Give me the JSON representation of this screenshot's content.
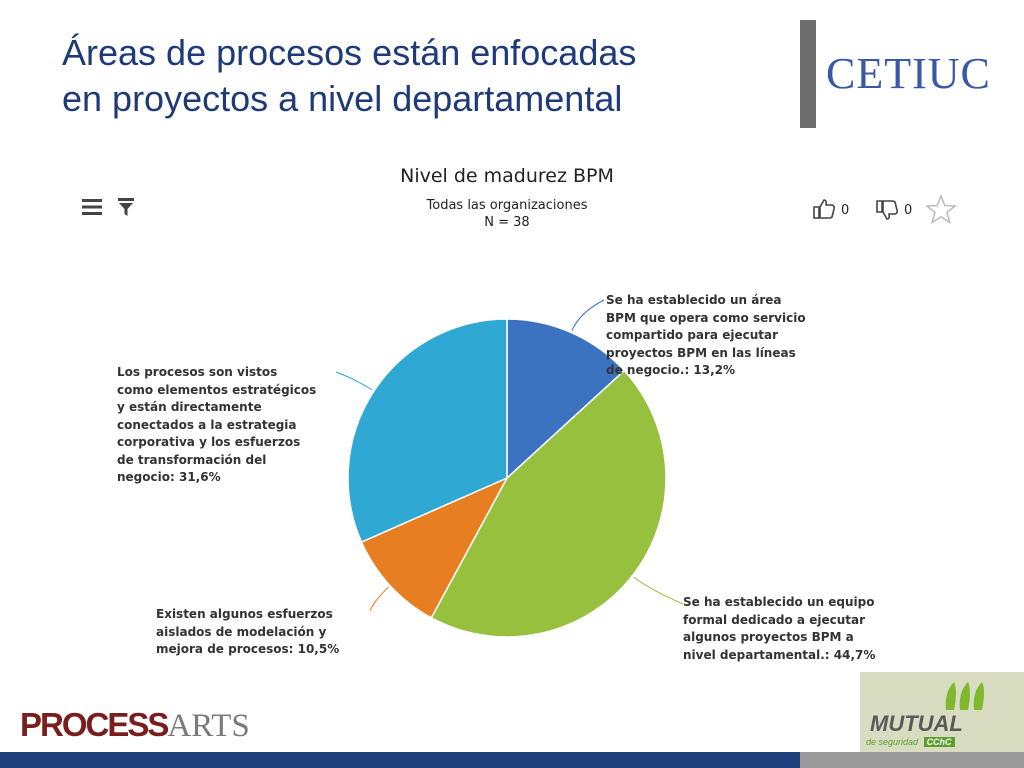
{
  "slide": {
    "title_lines": [
      "Áreas de procesos están enfocadas",
      "en proyectos a nivel departamental"
    ]
  },
  "logos": {
    "cetiuc": "CETIUC",
    "processarts_bold": "PROCESS",
    "processarts_light": "ARTS",
    "mutual_word": "MUTUAL",
    "mutual_sub": "de seguridad",
    "mutual_badge": "CChC"
  },
  "toolbar": {
    "like_count": "0",
    "dislike_count": "0",
    "icons": [
      "menu-icon",
      "filter-icon",
      "thumbs-up-icon",
      "thumbs-down-icon",
      "star-icon"
    ]
  },
  "chart_data": {
    "type": "pie",
    "title": "Nivel de madurez BPM",
    "subtitle_lines": [
      "Todas las organizaciones",
      "N = 38"
    ],
    "slices": [
      {
        "label_lines": [
          "Se ha establecido un área",
          "BPM que opera como servicio",
          "compartido para ejecutar",
          "proyectos BPM en las líneas",
          "de negocio.: 13,2%"
        ],
        "value": 13.2,
        "color": "#3b73c1"
      },
      {
        "label_lines": [
          "Se ha establecido un equipo",
          "formal dedicado a ejecutar",
          "algunos proyectos BPM a",
          "nivel departamental.: 44,7%"
        ],
        "value": 44.7,
        "color": "#96c03e"
      },
      {
        "label_lines": [
          "Existen algunos esfuerzos",
          "aislados de modelación y",
          "mejora de procesos: 10,5%"
        ],
        "value": 10.5,
        "color": "#e87e22"
      },
      {
        "label_lines": [
          "Los procesos son vistos",
          "como elementos estratégicos",
          "y están directamente",
          "conectados a la estrategia",
          "corporativa y los esfuerzos",
          "de transformación del",
          "negocio: 31,6%"
        ],
        "value": 31.6,
        "color": "#2fa9d3"
      }
    ],
    "start": "12 o'clock",
    "direction": "clockwise"
  }
}
